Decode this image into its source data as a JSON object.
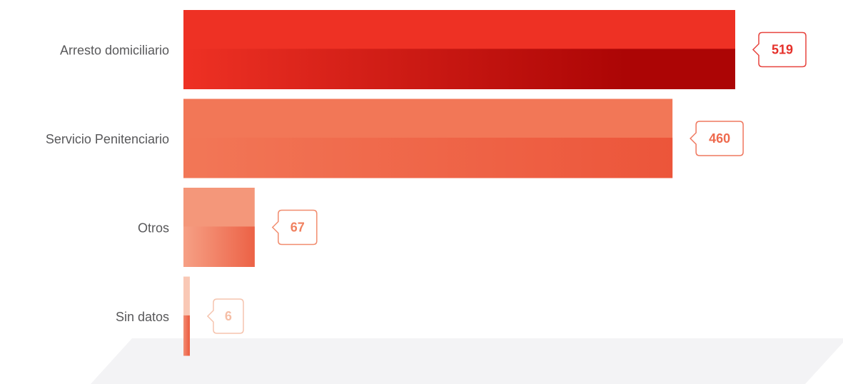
{
  "chart_data": {
    "type": "bar",
    "orientation": "horizontal",
    "categories": [
      "Arresto domiciliario",
      "Servicio Penitenciario",
      "Otros",
      "Sin datos"
    ],
    "values": [
      519,
      460,
      67,
      6
    ],
    "colors": [
      "#ee3124",
      "#f27757",
      "#f4977a",
      "#f9c8b5"
    ],
    "label_colors": [
      "#e5302a",
      "#ee6a4e",
      "#f0805f",
      "#f5bea6"
    ]
  }
}
